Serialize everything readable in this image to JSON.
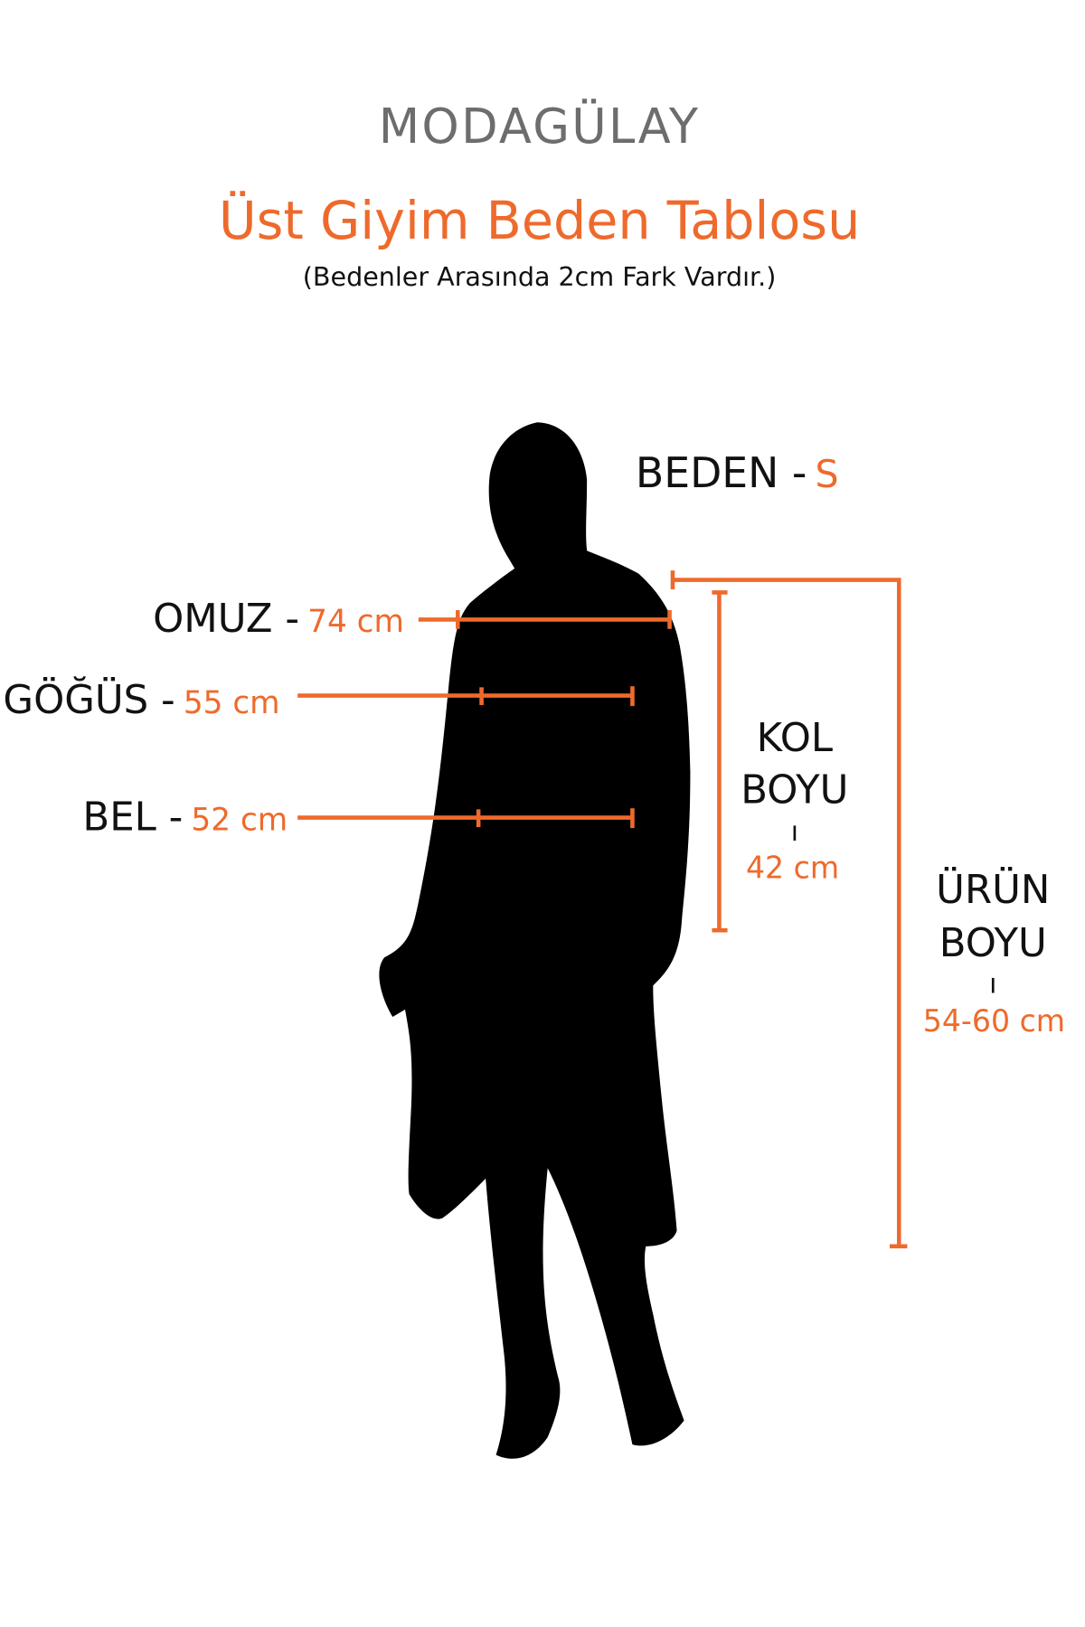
{
  "brand": {
    "logo_text": "MODAGÜLAY"
  },
  "header": {
    "title": "Üst Giyim Beden Tablosu",
    "subtitle": "(Bedenler Arasında 2cm Fark Vardır.)"
  },
  "size": {
    "label": "BEDEN -",
    "value": "S"
  },
  "measurements": {
    "shoulder": {
      "label": "OMUZ -",
      "value": "74 cm"
    },
    "chest": {
      "label": "GÖĞÜS -",
      "value": "55 cm"
    },
    "waist": {
      "label": "BEL -",
      "value": "52 cm"
    },
    "sleeve": {
      "label_line1": "KOL",
      "label_line2": "BOYU",
      "separator": "ı",
      "value": "42 cm"
    },
    "length": {
      "label_line1": "ÜRÜN",
      "label_line2": "BOYU",
      "separator": "ı",
      "value": "54-60 cm"
    }
  },
  "colors": {
    "accent": "#ee6a2c",
    "text": "#111111",
    "logo": "#6d6d6d"
  }
}
